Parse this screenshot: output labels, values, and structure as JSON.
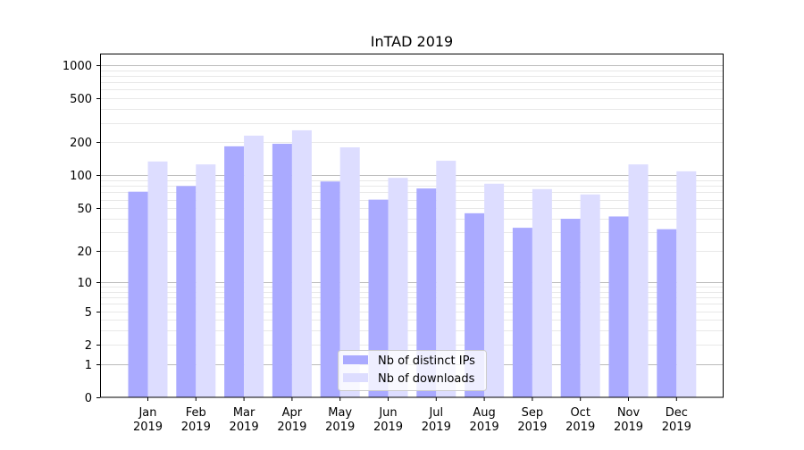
{
  "chart_data": {
    "type": "bar",
    "title": "InTAD 2019",
    "xlabel": "",
    "ylabel": "",
    "yscale": "log(1+y)",
    "ylim": [
      0,
      1300
    ],
    "yticks": [
      0,
      1,
      2,
      5,
      10,
      20,
      50,
      100,
      200,
      500,
      1000
    ],
    "categories": [
      [
        "Jan",
        "2019"
      ],
      [
        "Feb",
        "2019"
      ],
      [
        "Mar",
        "2019"
      ],
      [
        "Apr",
        "2019"
      ],
      [
        "May",
        "2019"
      ],
      [
        "Jun",
        "2019"
      ],
      [
        "Jul",
        "2019"
      ],
      [
        "Aug",
        "2019"
      ],
      [
        "Sep",
        "2019"
      ],
      [
        "Oct",
        "2019"
      ],
      [
        "Nov",
        "2019"
      ],
      [
        "Dec",
        "2019"
      ]
    ],
    "series": [
      {
        "name": "Nb of distinct IPs",
        "color": "#aaaaff",
        "values": [
          71,
          80,
          184,
          194,
          88,
          60,
          76,
          45,
          33,
          40,
          42,
          32
        ]
      },
      {
        "name": "Nb of downloads",
        "color": "#ddddff",
        "values": [
          134,
          126,
          230,
          257,
          180,
          95,
          136,
          84,
          75,
          67,
          126,
          109
        ]
      }
    ],
    "legend": "bottom-center",
    "grid": true
  }
}
